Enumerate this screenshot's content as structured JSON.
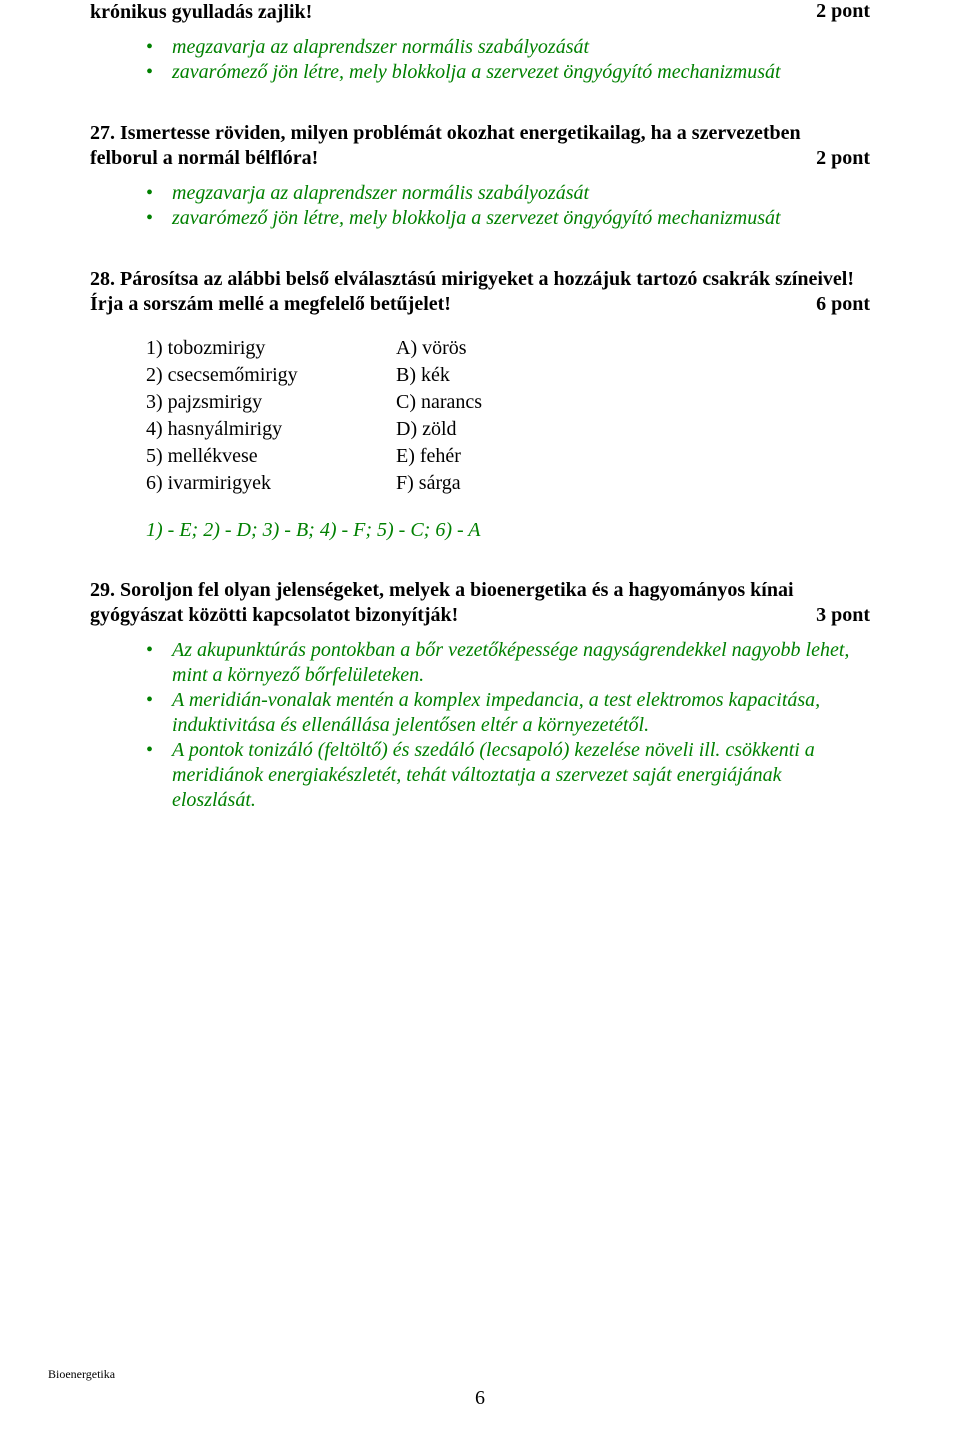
{
  "q26": {
    "title": "krónikus gyulladás zajlik!",
    "points": "2 pont",
    "bullets": [
      "megzavarja az alaprendszer normális szabályozását",
      "zavarómező jön létre, mely blokkolja a szervezet öngyógyító mechanizmusát"
    ]
  },
  "q27": {
    "title": "27. Ismertesse röviden, milyen problémát okozhat energetikailag, ha a szervezetben felborul a normál bélflóra!",
    "points": "2 pont",
    "bullets": [
      "megzavarja az alaprendszer normális szabályozását",
      "zavarómező jön létre, mely blokkolja a szervezet öngyógyító mechanizmusát"
    ]
  },
  "q28": {
    "title_line1": "28. Párosítsa az alábbi belső elválasztású mirigyeket a hozzájuk tartozó csakrák színeivel!",
    "title_line2": "Írja a sorszám mellé a megfelelő betűjelet!",
    "points": "6 pont",
    "left": [
      "1)  tobozmirigy",
      "2)  csecsemőmirigy",
      "3)  pajzsmirigy",
      "4)  hasnyálmirigy",
      "5)  mellékvese",
      "6)  ivarmirigyek"
    ],
    "right": [
      "A)  vörös",
      "B)  kék",
      "C)  narancs",
      "D)  zöld",
      "E)  fehér",
      "F)  sárga"
    ],
    "answer": "1) - E;  2) - D;  3) - B;  4) - F;  5) - C;  6) - A"
  },
  "q29": {
    "title": "29. Soroljon fel olyan jelenségeket, melyek a bioenergetika és a hagyományos kínai gyógyászat közötti kapcsolatot bizonyítják!",
    "points": "3 pont",
    "bullets": [
      "Az akupunktúrás pontokban a bőr vezetőképessége nagyságrendekkel nagyobb lehet, mint a környező bőrfelületeken.",
      "A meridián-vonalak mentén a komplex impedancia, a test elektromos kapacitása, induktivitása és ellenállása jelentősen eltér a környezetétől.",
      "A pontok tonizáló (feltöltő) és szedáló (lecsapoló) kezelése növeli ill. csökkenti a meridiánok energiakészletét, tehát változtatja a szervezet saját energiájának eloszlását."
    ]
  },
  "footer": "Bioenergetika",
  "pagenum": "6"
}
